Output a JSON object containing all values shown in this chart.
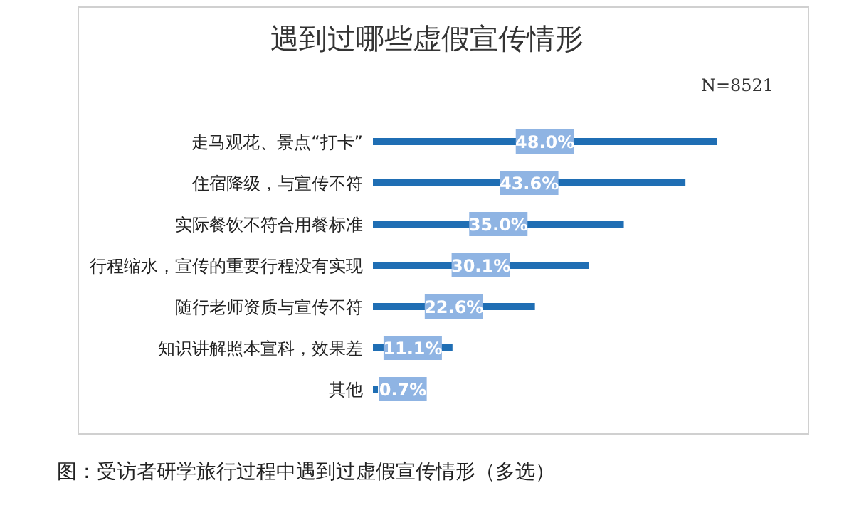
{
  "chart_data": {
    "type": "bar",
    "orientation": "horizontal",
    "title": "遇到过哪些虚假宣传情形",
    "subtitle": "N=8521",
    "categories": [
      "走马观花、景点“打卡”",
      "住宿降级，与宣传不符",
      "实际餐饮不符合用餐标准",
      "行程缩水，宣传的重要行程没有实现",
      "随行老师资质与宣传不符",
      "知识讲解照本宣科，效果差",
      "其他"
    ],
    "values": [
      48.0,
      43.6,
      35.0,
      30.1,
      22.6,
      11.1,
      0.7
    ],
    "value_labels": [
      "48.0%",
      "43.6%",
      "35.0%",
      "30.1%",
      "22.6%",
      "11.1%",
      "0.7%"
    ],
    "color": "#1f6eb4",
    "annotations": [
      "图：受访者研学旅行过程中遇到过虚假宣传情形（多选）"
    ]
  }
}
